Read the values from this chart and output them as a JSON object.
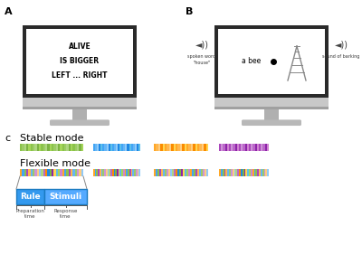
{
  "panel_A_label": "A",
  "panel_B_label": "B",
  "panel_C_label": "c",
  "monitor_A_text": [
    "ALIVE",
    "IS BIGGER",
    "LEFT ... RIGHT"
  ],
  "monitor_B_spoken_label": "spoken word\n\"house\"",
  "monitor_B_sound_label": "sound of barking",
  "stable_mode_label": "Stable mode",
  "flexible_mode_label": "Flexible mode",
  "rule_label": "Rule",
  "stimuli_label": "Stimuli",
  "prep_time_label": "Preparation\ntime",
  "response_time_label": "Response\ntime",
  "stripe_colors_green": [
    "#8BC34A",
    "#9CCC65",
    "#AED581",
    "#7CB342",
    "#A5D65A",
    "#8BC34A",
    "#9CCC65",
    "#AED581",
    "#7CB342",
    "#A5D65A",
    "#8BC34A",
    "#9CCC65",
    "#AED581",
    "#7CB342",
    "#A5D65A",
    "#8BC34A",
    "#9CCC65",
    "#AED581",
    "#7CB342",
    "#A5D65A",
    "#8BC34A",
    "#9CCC65",
    "#AED581",
    "#7CB342",
    "#A5D65A",
    "#8BC34A",
    "#9CCC65",
    "#AED581",
    "#7CB342",
    "#A5D65A"
  ],
  "stripe_colors_blue": [
    "#42A5F5",
    "#64B5F6",
    "#90CAF9",
    "#1E88E5",
    "#5BC0EB",
    "#42A5F5",
    "#64B5F6",
    "#90CAF9",
    "#1E88E5",
    "#5BC0EB",
    "#42A5F5",
    "#64B5F6",
    "#90CAF9",
    "#1E88E5",
    "#5BC0EB",
    "#42A5F5",
    "#64B5F6",
    "#90CAF9",
    "#1E88E5",
    "#5BC0EB",
    "#42A5F5",
    "#64B5F6",
    "#90CAF9",
    "#1E88E5",
    "#5BC0EB"
  ],
  "stripe_colors_orange": [
    "#FFA726",
    "#FFB74D",
    "#FFCC80",
    "#FB8C00",
    "#FFD54F",
    "#FFA726",
    "#FFB74D",
    "#FFCC80",
    "#FB8C00",
    "#FFD54F",
    "#FFA726",
    "#FFB74D",
    "#FFCC80",
    "#FB8C00",
    "#FFD54F",
    "#FFA726",
    "#FFB74D",
    "#FFCC80",
    "#FB8C00",
    "#FFD54F",
    "#FFA726",
    "#FFB74D",
    "#FFCC80",
    "#FB8C00",
    "#FFD54F"
  ],
  "stripe_colors_purple": [
    "#AB47BC",
    "#CE93D8",
    "#BA68C8",
    "#8E24AA",
    "#D084D0",
    "#AB47BC",
    "#CE93D8",
    "#BA68C8",
    "#8E24AA",
    "#D084D0",
    "#AB47BC",
    "#CE93D8",
    "#BA68C8",
    "#8E24AA",
    "#D084D0",
    "#AB47BC",
    "#CE93D8",
    "#BA68C8",
    "#8E24AA",
    "#D084D0",
    "#AB47BC",
    "#CE93D8",
    "#BA68C8",
    "#8E24AA",
    "#D084D0"
  ],
  "stripe_colors_flex": [
    "#FFA726",
    "#42A5F5",
    "#8BC34A",
    "#AB47BC",
    "#FFB74D",
    "#64B5F6",
    "#9CCC65",
    "#CE93D8",
    "#FFCC80",
    "#90CAF9",
    "#AED581",
    "#BA68C8",
    "#FB8C00",
    "#1E88E5",
    "#7CB342",
    "#8E24AA",
    "#FFD54F",
    "#5BC0EB",
    "#A5D65A",
    "#D084D0",
    "#FFA726",
    "#42A5F5",
    "#8BC34A",
    "#AB47BC",
    "#FFB74D",
    "#64B5F6",
    "#9CCC65",
    "#CE93D8",
    "#FFCC80",
    "#90CAF9"
  ],
  "background_color": "#ffffff",
  "annot_box_color1": "#3399FF",
  "annot_box_color2": "#55AAFF"
}
